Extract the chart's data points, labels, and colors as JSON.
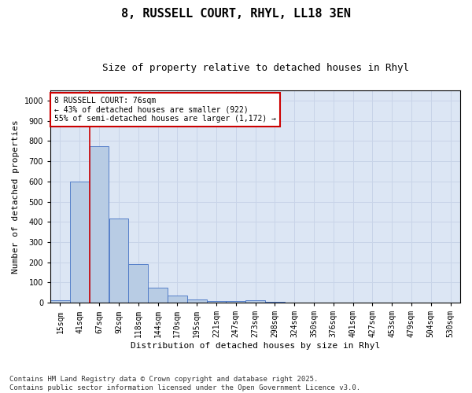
{
  "title": "8, RUSSELL COURT, RHYL, LL18 3EN",
  "subtitle": "Size of property relative to detached houses in Rhyl",
  "xlabel": "Distribution of detached houses by size in Rhyl",
  "ylabel": "Number of detached properties",
  "categories": [
    "15sqm",
    "41sqm",
    "67sqm",
    "92sqm",
    "118sqm",
    "144sqm",
    "170sqm",
    "195sqm",
    "221sqm",
    "247sqm",
    "273sqm",
    "298sqm",
    "324sqm",
    "350sqm",
    "376sqm",
    "401sqm",
    "427sqm",
    "453sqm",
    "479sqm",
    "504sqm",
    "530sqm"
  ],
  "values": [
    13,
    600,
    775,
    415,
    190,
    75,
    35,
    18,
    10,
    8,
    13,
    5,
    0,
    0,
    0,
    0,
    0,
    0,
    0,
    0,
    0
  ],
  "bar_color": "#b8cce4",
  "bar_edge_color": "#4472c4",
  "vline_x_index": 2,
  "vline_color": "#cc0000",
  "annotation_text": "8 RUSSELL COURT: 76sqm\n← 43% of detached houses are smaller (922)\n55% of semi-detached houses are larger (1,172) →",
  "annotation_box_color": "#ffffff",
  "annotation_box_edge": "#cc0000",
  "ylim": [
    0,
    1050
  ],
  "yticks": [
    0,
    100,
    200,
    300,
    400,
    500,
    600,
    700,
    800,
    900,
    1000
  ],
  "grid_color": "#c8d4e8",
  "background_color": "#dce6f4",
  "fig_background": "#ffffff",
  "footer": "Contains HM Land Registry data © Crown copyright and database right 2025.\nContains public sector information licensed under the Open Government Licence v3.0.",
  "title_fontsize": 11,
  "subtitle_fontsize": 9,
  "label_fontsize": 8,
  "tick_fontsize": 7,
  "annotation_fontsize": 7,
  "footer_fontsize": 6.5
}
